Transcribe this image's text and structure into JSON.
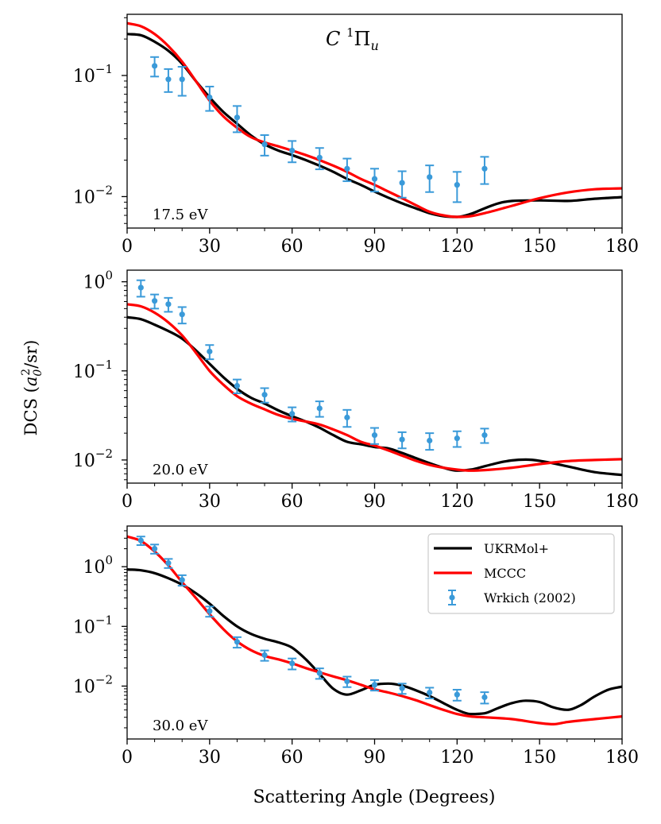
{
  "figure": {
    "title": "C ¹Πu",
    "title_main": "C ",
    "title_sup": "1",
    "title_pi": "Π",
    "title_sub": "u",
    "ylabel_prefix": "DCS (",
    "ylabel_a": "a",
    "ylabel_sub": "0",
    "ylabel_sup": "2",
    "ylabel_suffix": "/sr)",
    "xlabel": "Scattering Angle (Degrees)",
    "colors": {
      "ukrmol": "#000000",
      "mccc": "#ff0000",
      "exp": "#3a9ad9"
    }
  },
  "legend": {
    "placement": "top-right of bottom panel",
    "entries": [
      {
        "key": "ukrmol",
        "label": "UKRMol+"
      },
      {
        "key": "mccc",
        "label": "MCCC"
      },
      {
        "key": "exp",
        "label": "Wrkich (2002)"
      }
    ]
  },
  "chart_data": [
    {
      "type": "line",
      "energy_label": "17.5 eV",
      "xlim": [
        0,
        180
      ],
      "ylim": [
        0.0055,
        0.32
      ],
      "yscale": "log",
      "xticks": [
        0,
        30,
        60,
        90,
        120,
        150,
        180
      ],
      "yticks": [
        {
          "value": 0.1,
          "mantissa": "10",
          "exp": "−1"
        },
        {
          "value": 0.01,
          "mantissa": "10",
          "exp": "−2"
        }
      ],
      "series": [
        {
          "name": "UKRMol+",
          "key": "ukrmol",
          "x": [
            0,
            5,
            10,
            15,
            20,
            25,
            30,
            35,
            40,
            45,
            50,
            55,
            60,
            65,
            70,
            75,
            80,
            85,
            90,
            95,
            100,
            105,
            110,
            115,
            120,
            125,
            130,
            135,
            140,
            150,
            160,
            170,
            180
          ],
          "y": [
            0.22,
            0.215,
            0.19,
            0.16,
            0.125,
            0.09,
            0.066,
            0.05,
            0.04,
            0.032,
            0.027,
            0.024,
            0.022,
            0.02,
            0.018,
            0.016,
            0.014,
            0.0125,
            0.011,
            0.0098,
            0.0088,
            0.008,
            0.0073,
            0.0069,
            0.0068,
            0.0072,
            0.008,
            0.0088,
            0.0092,
            0.0093,
            0.0092,
            0.0096,
            0.0099
          ]
        },
        {
          "name": "MCCC",
          "key": "mccc",
          "x": [
            0,
            5,
            10,
            15,
            20,
            25,
            30,
            35,
            40,
            45,
            50,
            55,
            60,
            65,
            70,
            75,
            80,
            85,
            90,
            95,
            100,
            105,
            110,
            115,
            120,
            125,
            130,
            140,
            150,
            160,
            170,
            180
          ],
          "y": [
            0.27,
            0.255,
            0.22,
            0.175,
            0.13,
            0.09,
            0.062,
            0.046,
            0.037,
            0.031,
            0.028,
            0.026,
            0.024,
            0.022,
            0.02,
            0.018,
            0.016,
            0.014,
            0.0125,
            0.011,
            0.0097,
            0.0085,
            0.0075,
            0.007,
            0.0068,
            0.0069,
            0.0073,
            0.0084,
            0.0097,
            0.0108,
            0.0115,
            0.0117
          ]
        },
        {
          "name": "Wrkich (2002)",
          "key": "exp",
          "x": [
            10,
            15,
            20,
            30,
            40,
            50,
            60,
            70,
            80,
            90,
            100,
            110,
            120,
            130
          ],
          "y": [
            0.12,
            0.093,
            0.093,
            0.066,
            0.045,
            0.027,
            0.024,
            0.021,
            0.017,
            0.014,
            0.013,
            0.0145,
            0.0125,
            0.017
          ],
          "err": [
            0.022,
            0.02,
            0.025,
            0.015,
            0.011,
            0.0052,
            0.0048,
            0.0042,
            0.0036,
            0.003,
            0.0032,
            0.0036,
            0.0035,
            0.0043
          ]
        }
      ]
    },
    {
      "type": "line",
      "energy_label": "20.0 eV",
      "xlim": [
        0,
        180
      ],
      "ylim": [
        0.0055,
        1.35
      ],
      "yscale": "log",
      "xticks": [
        0,
        30,
        60,
        90,
        120,
        150,
        180
      ],
      "yticks": [
        {
          "value": 1,
          "mantissa": "10",
          "exp": "0"
        },
        {
          "value": 0.1,
          "mantissa": "10",
          "exp": "−1"
        },
        {
          "value": 0.01,
          "mantissa": "10",
          "exp": "−2"
        }
      ],
      "series": [
        {
          "name": "UKRMol+",
          "key": "ukrmol",
          "x": [
            0,
            5,
            10,
            15,
            20,
            25,
            30,
            35,
            40,
            45,
            50,
            55,
            60,
            65,
            70,
            75,
            80,
            85,
            90,
            95,
            100,
            105,
            110,
            115,
            120,
            125,
            130,
            135,
            140,
            145,
            150,
            160,
            170,
            180
          ],
          "y": [
            0.4,
            0.38,
            0.33,
            0.28,
            0.23,
            0.17,
            0.12,
            0.085,
            0.063,
            0.05,
            0.043,
            0.036,
            0.031,
            0.027,
            0.023,
            0.019,
            0.016,
            0.015,
            0.014,
            0.0135,
            0.012,
            0.0105,
            0.0092,
            0.0082,
            0.0076,
            0.0078,
            0.0085,
            0.0093,
            0.0099,
            0.0101,
            0.0098,
            0.0085,
            0.0073,
            0.0068
          ]
        },
        {
          "name": "MCCC",
          "key": "mccc",
          "x": [
            0,
            5,
            10,
            15,
            20,
            25,
            30,
            35,
            40,
            45,
            50,
            55,
            60,
            65,
            70,
            75,
            80,
            85,
            90,
            95,
            100,
            105,
            110,
            115,
            120,
            125,
            130,
            140,
            150,
            160,
            170,
            180
          ],
          "y": [
            0.56,
            0.53,
            0.45,
            0.35,
            0.25,
            0.16,
            0.1,
            0.07,
            0.052,
            0.043,
            0.037,
            0.032,
            0.029,
            0.027,
            0.025,
            0.022,
            0.019,
            0.016,
            0.0145,
            0.0128,
            0.0112,
            0.0098,
            0.0088,
            0.0082,
            0.0078,
            0.0076,
            0.0077,
            0.0082,
            0.009,
            0.0097,
            0.01,
            0.0102
          ]
        },
        {
          "name": "Wrkich (2002)",
          "key": "exp",
          "x": [
            5,
            10,
            15,
            20,
            30,
            40,
            50,
            60,
            70,
            80,
            90,
            100,
            110,
            120,
            130
          ],
          "y": [
            0.86,
            0.61,
            0.56,
            0.43,
            0.165,
            0.068,
            0.054,
            0.033,
            0.038,
            0.03,
            0.019,
            0.017,
            0.0165,
            0.0175,
            0.019
          ],
          "err": [
            0.18,
            0.11,
            0.1,
            0.09,
            0.03,
            0.012,
            0.01,
            0.006,
            0.0075,
            0.0065,
            0.0039,
            0.0035,
            0.0035,
            0.0035,
            0.0035
          ]
        }
      ]
    },
    {
      "type": "line",
      "energy_label": "30.0 eV",
      "xlim": [
        0,
        180
      ],
      "ylim": [
        0.0013,
        4.8
      ],
      "yscale": "log",
      "xticks": [
        0,
        30,
        60,
        90,
        120,
        150,
        180
      ],
      "yticks": [
        {
          "value": 1,
          "mantissa": "10",
          "exp": "0"
        },
        {
          "value": 0.1,
          "mantissa": "10",
          "exp": "−1"
        },
        {
          "value": 0.01,
          "mantissa": "10",
          "exp": "−2"
        }
      ],
      "series": [
        {
          "name": "UKRMol+",
          "key": "ukrmol",
          "x": [
            0,
            5,
            10,
            15,
            20,
            25,
            30,
            35,
            40,
            45,
            50,
            55,
            60,
            65,
            70,
            75,
            80,
            85,
            90,
            95,
            100,
            105,
            110,
            115,
            120,
            125,
            130,
            135,
            140,
            145,
            150,
            155,
            160,
            165,
            170,
            175,
            180
          ],
          "y": [
            0.9,
            0.87,
            0.78,
            0.64,
            0.5,
            0.36,
            0.24,
            0.15,
            0.1,
            0.075,
            0.062,
            0.054,
            0.044,
            0.028,
            0.016,
            0.009,
            0.0072,
            0.0085,
            0.0105,
            0.011,
            0.0102,
            0.0085,
            0.0068,
            0.0052,
            0.004,
            0.0034,
            0.0035,
            0.0043,
            0.0052,
            0.0057,
            0.0054,
            0.0044,
            0.004,
            0.0048,
            0.0067,
            0.0087,
            0.0098
          ]
        },
        {
          "name": "MCCC",
          "key": "mccc",
          "x": [
            0,
            5,
            10,
            15,
            20,
            25,
            30,
            35,
            40,
            45,
            50,
            55,
            60,
            65,
            70,
            75,
            80,
            85,
            90,
            95,
            100,
            105,
            110,
            115,
            120,
            125,
            130,
            140,
            150,
            155,
            160,
            170,
            180
          ],
          "y": [
            3.2,
            2.7,
            1.8,
            1.05,
            0.55,
            0.3,
            0.16,
            0.09,
            0.056,
            0.04,
            0.032,
            0.028,
            0.024,
            0.02,
            0.017,
            0.0145,
            0.0125,
            0.0105,
            0.0088,
            0.0078,
            0.0068,
            0.0058,
            0.0048,
            0.004,
            0.0034,
            0.0031,
            0.003,
            0.0028,
            0.0024,
            0.0023,
            0.0025,
            0.0028,
            0.0031
          ]
        },
        {
          "name": "Wrkich (2002)",
          "key": "exp",
          "x": [
            5,
            10,
            15,
            20,
            30,
            40,
            50,
            60,
            70,
            80,
            90,
            100,
            110,
            120,
            130
          ],
          "y": [
            2.75,
            2.0,
            1.15,
            0.6,
            0.18,
            0.055,
            0.033,
            0.024,
            0.0165,
            0.012,
            0.0105,
            0.0092,
            0.0078,
            0.0072,
            0.0065
          ],
          "err": [
            0.45,
            0.35,
            0.2,
            0.12,
            0.035,
            0.011,
            0.0065,
            0.005,
            0.0033,
            0.0024,
            0.0021,
            0.0018,
            0.0016,
            0.0015,
            0.0014
          ]
        }
      ]
    }
  ]
}
